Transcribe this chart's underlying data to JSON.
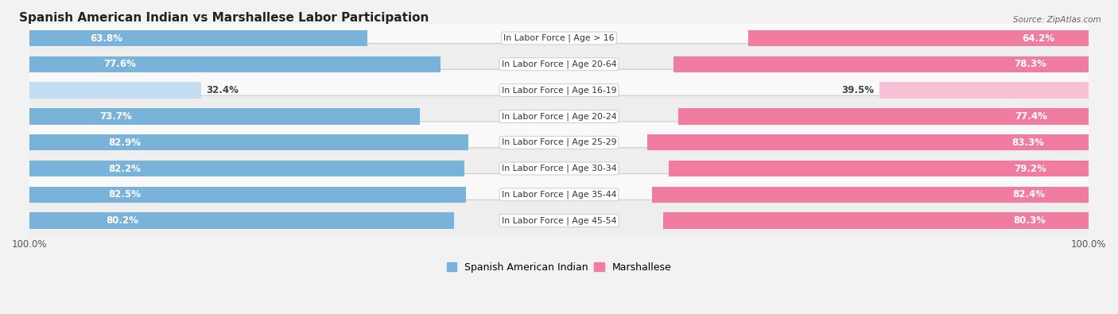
{
  "title": "Spanish American Indian vs Marshallese Labor Participation",
  "source": "Source: ZipAtlas.com",
  "categories": [
    "In Labor Force | Age > 16",
    "In Labor Force | Age 20-64",
    "In Labor Force | Age 16-19",
    "In Labor Force | Age 20-24",
    "In Labor Force | Age 25-29",
    "In Labor Force | Age 30-34",
    "In Labor Force | Age 35-44",
    "In Labor Force | Age 45-54"
  ],
  "spanish_values": [
    63.8,
    77.6,
    32.4,
    73.7,
    82.9,
    82.2,
    82.5,
    80.2
  ],
  "marshallese_values": [
    64.2,
    78.3,
    39.5,
    77.4,
    83.3,
    79.2,
    82.4,
    80.3
  ],
  "spanish_color": "#7ab3d9",
  "marshallese_color": "#f07ca0",
  "spanish_light_color": "#c5ddf0",
  "marshallese_light_color": "#f8c0d4",
  "max_val": 100.0,
  "bg_color": "#f2f2f2",
  "row_bg_light": "#f9f9f9",
  "row_bg_dark": "#eeeeee",
  "title_fontsize": 11,
  "label_fontsize": 8.5,
  "tick_fontsize": 8.5,
  "legend_fontsize": 9,
  "bar_height": 0.62,
  "row_border_color": "#cccccc"
}
